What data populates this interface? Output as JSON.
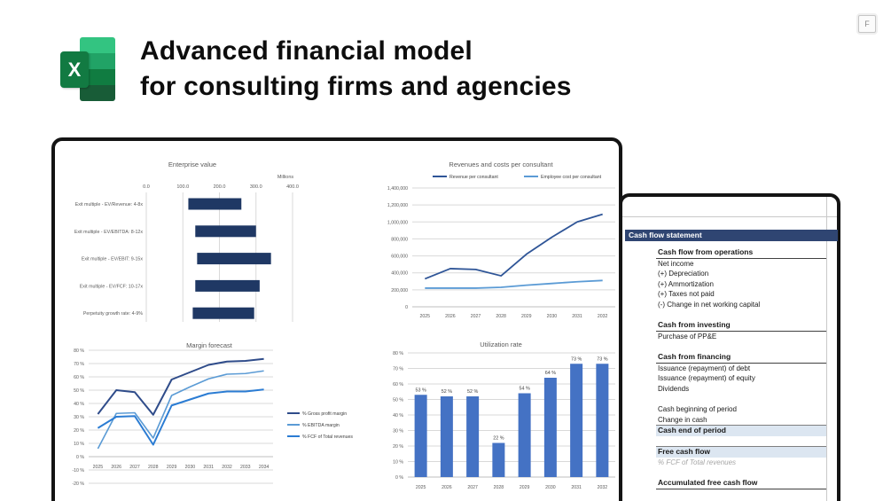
{
  "slide": {
    "title_line1": "Advanced financial model",
    "title_line2": "for consulting firms and agencies",
    "fullscreen_button": "F"
  },
  "icons": {
    "excel_icon": "excel-logo",
    "excel_letter": "X"
  },
  "colors": {
    "ev_bar_navy": "#1F3864",
    "util_bar_blue": "#4472C4",
    "cf_header_bg": "#2F4572",
    "cf_highlight_bg": "#DCE6F1",
    "gridline": "#D9D9D9",
    "axis_line": "#BFBFBF",
    "chart_text": "#595959",
    "excel_greens": [
      "#33C481",
      "#21A366",
      "#107C41",
      "#185C37"
    ]
  },
  "chart_data": [
    {
      "id": "enterprise_value",
      "type": "bar",
      "subtype": "horizontal-range",
      "title": "Enterprise value",
      "axis_unit_label": "Millions",
      "categories": [
        "Exit multiple - EV/Revenue: 4-8x",
        "Exit multiple - EV/EBITDA: 8-12x",
        "Exit multiple - EV/EBIT: 9-15x",
        "Exit multiple - EV/FCF: 10-17x",
        "Perpetuity growth rate: 4-9%"
      ],
      "ranges": [
        [
          115,
          260
        ],
        [
          134,
          300
        ],
        [
          139,
          341
        ],
        [
          134,
          310
        ],
        [
          127,
          295
        ]
      ],
      "xticks": [
        "0.0",
        "100.0",
        "200.0",
        "300.0",
        "400.0"
      ],
      "xlim": [
        0,
        400
      ],
      "bar_color": "#1F3864",
      "grid": true
    },
    {
      "id": "revenues_costs_per_consultant",
      "type": "line",
      "title": "Revenues and costs per consultant",
      "categories": [
        "2025",
        "2026",
        "2027",
        "2028",
        "2029",
        "2030",
        "2031",
        "2032"
      ],
      "series": [
        {
          "name": "Revenue per consultant",
          "color": "#2F5597",
          "values": [
            330000,
            450000,
            440000,
            365000,
            620000,
            820000,
            1000000,
            1090000
          ]
        },
        {
          "name": "Employee cost per consultant",
          "color": "#5B9BD5",
          "values": [
            220000,
            220000,
            220000,
            230000,
            255000,
            275000,
            295000,
            310000
          ]
        }
      ],
      "yticks": [
        "1,400,000",
        "1,200,000",
        "1,000,000",
        "800,000",
        "600,000",
        "400,000",
        "200,000",
        "0"
      ],
      "ylim": [
        0,
        1400000
      ],
      "legend_position": "top",
      "grid": true
    },
    {
      "id": "margin_forecast",
      "type": "line",
      "title": "Margin forecast",
      "categories": [
        "2025",
        "2026",
        "2027",
        "2028",
        "2029",
        "2030",
        "2031",
        "2032",
        "2033",
        "2034"
      ],
      "series": [
        {
          "name": "% Gross profit margin",
          "color": "#2F4C8A",
          "values": [
            32,
            50,
            48.5,
            31.5,
            58,
            63.5,
            69,
            71.5,
            72,
            73.5
          ]
        },
        {
          "name": "% EBITDA margin",
          "color": "#5B9BD5",
          "values": [
            6,
            32.5,
            33,
            14,
            46,
            52.5,
            58.5,
            62,
            62.5,
            64.5
          ]
        },
        {
          "name": "% FCF of Total revenues",
          "color": "#2B7CD3",
          "values": [
            21.5,
            30,
            30.5,
            9,
            38.5,
            43,
            47.5,
            49,
            49,
            50.5
          ]
        }
      ],
      "yticks": [
        "80 %",
        "70 %",
        "60 %",
        "50 %",
        "40 %",
        "30 %",
        "20 %",
        "10 %",
        "0 %",
        "-10 %",
        "-20 %"
      ],
      "ylim": [
        -20,
        80
      ],
      "legend_position": "right",
      "grid": true
    },
    {
      "id": "utilization_rate",
      "type": "bar",
      "subtype": "column",
      "title": "Utilization rate",
      "categories": [
        "2025",
        "2026",
        "2027",
        "2028",
        "2029",
        "2030",
        "2031",
        "2032"
      ],
      "values": [
        53,
        52,
        52,
        22,
        54,
        64,
        73,
        73
      ],
      "data_labels": [
        "53 %",
        "52 %",
        "52 %",
        "22 %",
        "54 %",
        "64 %",
        "73 %",
        "73 %"
      ],
      "yticks": [
        "80 %",
        "70 %",
        "60 %",
        "50 %",
        "40 %",
        "30 %",
        "20 %",
        "10 %",
        "0 %"
      ],
      "ylim": [
        0,
        80
      ],
      "bar_color": "#4472C4",
      "grid": true
    }
  ],
  "cash_flow": {
    "header": "Cash flow statement",
    "rows": [
      {
        "text": "Cash flow from operations",
        "style": "section"
      },
      {
        "text": "Net income",
        "style": "item"
      },
      {
        "text": "(+) Depreciation",
        "style": "item"
      },
      {
        "text": "(+) Ammortization",
        "style": "item"
      },
      {
        "text": "(+) Taxes not paid",
        "style": "item"
      },
      {
        "text": "(-) Change in net working capital",
        "style": "item"
      },
      {
        "text": "",
        "style": "blank"
      },
      {
        "text": "Cash from investing",
        "style": "section"
      },
      {
        "text": "Purchase of PP&E",
        "style": "item"
      },
      {
        "text": "",
        "style": "blank"
      },
      {
        "text": "Cash from financing",
        "style": "section"
      },
      {
        "text": "Issuance (repayment) of debt",
        "style": "item"
      },
      {
        "text": "Issuance (repayment) of equity",
        "style": "item"
      },
      {
        "text": "Dividends",
        "style": "item"
      },
      {
        "text": "",
        "style": "blank"
      },
      {
        "text": "Cash beginning of period",
        "style": "item"
      },
      {
        "text": "Change in cash",
        "style": "item"
      },
      {
        "text": "Cash end of period",
        "style": "total"
      },
      {
        "text": "",
        "style": "blank"
      },
      {
        "text": "Free cash flow",
        "style": "total"
      },
      {
        "text": "% FCF of Total revenues",
        "style": "note"
      },
      {
        "text": "",
        "style": "blank"
      },
      {
        "text": "Accumulated free cash flow",
        "style": "section"
      }
    ]
  }
}
